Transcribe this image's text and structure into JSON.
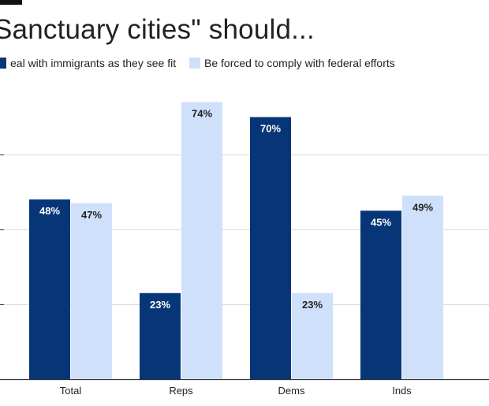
{
  "colors": {
    "dark": "#073678",
    "light": "#cfe0fb",
    "grid": "#d9d9d9",
    "axis": "#333333"
  },
  "chart_data": {
    "type": "bar",
    "title": "Sanctuary cities\" should...",
    "categories": [
      "Total",
      "Reps",
      "Dems",
      "Inds"
    ],
    "series": [
      {
        "name": "eal with immigrants as they see fit",
        "values": [
          48,
          23,
          70,
          45
        ],
        "labels": [
          "48%",
          "23%",
          "70%",
          "45%"
        ]
      },
      {
        "name": "Be forced to comply with federal efforts",
        "values": [
          47,
          74,
          23,
          49
        ],
        "labels": [
          "47%",
          "74%",
          "23%",
          "49%"
        ]
      }
    ],
    "ylim": [
      0,
      80
    ],
    "gridlines": [
      20,
      40,
      60
    ],
    "legend_position": "top",
    "xlabel": "",
    "ylabel": ""
  }
}
